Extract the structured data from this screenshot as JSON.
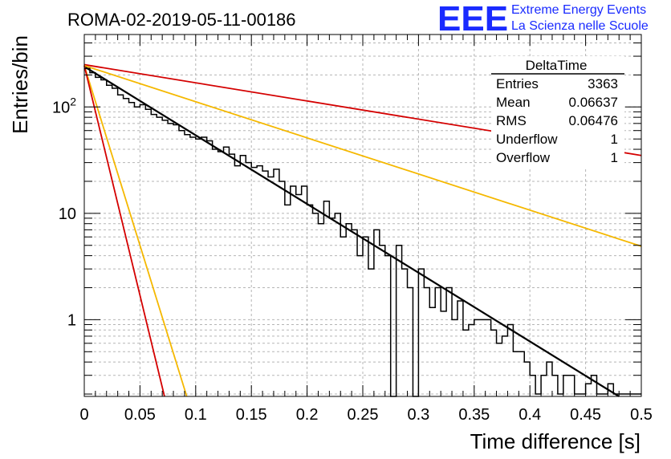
{
  "header": {
    "title": "ROMA-02-2019-05-11-00186",
    "logo_mark": "EEE",
    "logo_line1": "Extreme Energy Events",
    "logo_line2": "La Scienza nelle Scuole"
  },
  "stats_box": {
    "title": "DeltaTime",
    "rows": [
      {
        "label": "Entries",
        "value": "3363"
      },
      {
        "label": "Mean",
        "value": "0.06637"
      },
      {
        "label": "RMS",
        "value": "0.06476"
      },
      {
        "label": "Underflow",
        "value": "1"
      },
      {
        "label": "Overflow",
        "value": "1"
      }
    ]
  },
  "chart_data": {
    "type": "line",
    "title": "ROMA-02-2019-05-11-00186",
    "xlabel": "Time difference [s]",
    "ylabel": "Entries/bin",
    "xlim": [
      0,
      0.5
    ],
    "ylim": [
      0.19,
      480
    ],
    "yscale": "log",
    "grid": true,
    "x_ticks": [
      "0",
      "0.05",
      "0.1",
      "0.15",
      "0.2",
      "0.25",
      "0.3",
      "0.35",
      "0.4",
      "0.45",
      "0.5"
    ],
    "y_ticks": [
      {
        "value": 1,
        "label": "1"
      },
      {
        "value": 10,
        "label": "10"
      },
      {
        "value": 100,
        "label": "10",
        "exponent": "2"
      }
    ],
    "histogram": {
      "bin_width": 0.005,
      "color": "#000000",
      "values": [
        230,
        210,
        190,
        180,
        160,
        150,
        130,
        120,
        110,
        100,
        105,
        95,
        85,
        80,
        75,
        70,
        68,
        60,
        55,
        52,
        50,
        52,
        48,
        40,
        38,
        42,
        36,
        28,
        35,
        30,
        27,
        28,
        25,
        22,
        26,
        20,
        12,
        18,
        15,
        18,
        12,
        10,
        8,
        13,
        9,
        10,
        6,
        8,
        7,
        4,
        6,
        3,
        7,
        5,
        4,
        0,
        5,
        3,
        2,
        0,
        3,
        2,
        1.3,
        2,
        1.2,
        2,
        1,
        1.5,
        0.8,
        0.9,
        1,
        1,
        1,
        0.8,
        0.6,
        0.7,
        0.9,
        0.5,
        0.5,
        0.4,
        0.3,
        0.2,
        0.3,
        0.4,
        0.3,
        0.2,
        0.3,
        0.3,
        0.2,
        0.2,
        0.25,
        0.3,
        0.2,
        0.2,
        0.25,
        0.2,
        0.2,
        0.2,
        0.2,
        0.2
      ]
    },
    "series": [
      {
        "color": "#000000",
        "x": [
          0,
          0.48
        ],
        "y": [
          240,
          0.19
        ]
      },
      {
        "color": "#d40000",
        "x": [
          0,
          0.5
        ],
        "y": [
          250,
          35
        ]
      },
      {
        "color": "#f5b800",
        "x": [
          0,
          0.5
        ],
        "y": [
          245,
          4.9
        ]
      },
      {
        "color": "#f5b800",
        "x": [
          0,
          0.092
        ],
        "y": [
          245,
          0.19
        ]
      },
      {
        "color": "#d40000",
        "x": [
          0,
          0.072
        ],
        "y": [
          245,
          0.19
        ]
      }
    ]
  }
}
